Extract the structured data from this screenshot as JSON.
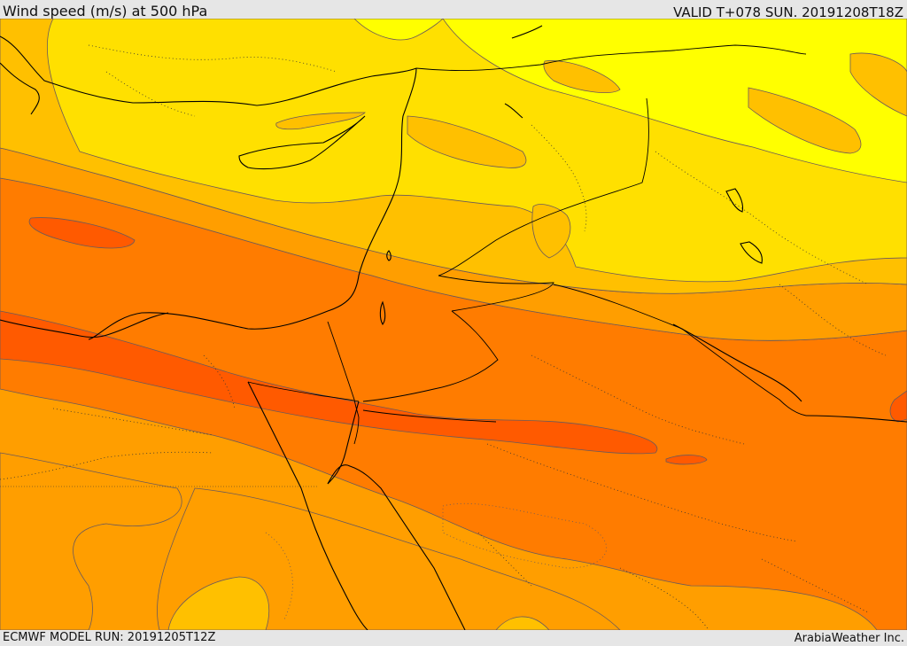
{
  "header": {
    "title": "Wind speed (m/s) at 500 hPa",
    "valid": "VALID T+078 SUN. 20191208T18Z"
  },
  "footer": {
    "model_run": "ECMWF MODEL RUN: 20191205T12Z",
    "credit": "ArabiaWeather Inc."
  },
  "palette": {
    "band_lightest": "#ffff00",
    "band_light": "#ffe000",
    "band_mid": "#ffc000",
    "band_orange": "#ff9e00",
    "band_dark": "#ff7c00",
    "band_darkest": "#ff5a00",
    "contour": "#6b5a5a",
    "coast": "#000000"
  }
}
